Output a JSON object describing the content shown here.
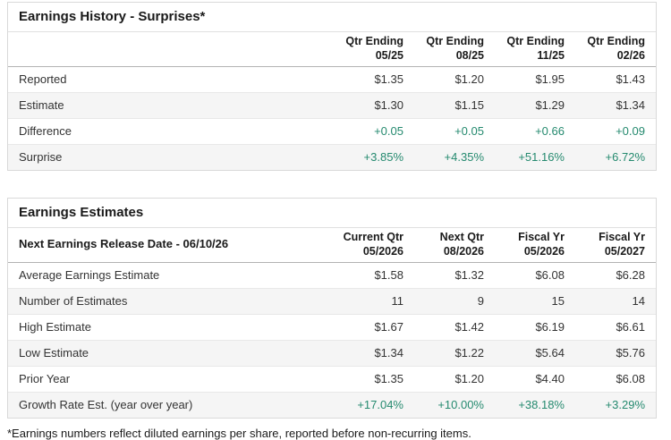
{
  "colors": {
    "positive_green": "#258a6f",
    "row_alt_bg": "#f5f5f5",
    "border_light": "#e8e8e8",
    "border_header": "#b3b3b3",
    "text_dark": "#1a1a1a"
  },
  "earnings_history": {
    "title": "Earnings History - Surprises*",
    "columns": [
      {
        "line1": "Qtr Ending",
        "line2": "05/25"
      },
      {
        "line1": "Qtr Ending",
        "line2": "08/25"
      },
      {
        "line1": "Qtr Ending",
        "line2": "11/25"
      },
      {
        "line1": "Qtr Ending",
        "line2": "02/26"
      }
    ],
    "rows": [
      {
        "label": "Reported",
        "values": [
          "$1.35",
          "$1.20",
          "$1.95",
          "$1.43"
        ],
        "positive": false
      },
      {
        "label": "Estimate",
        "values": [
          "$1.30",
          "$1.15",
          "$1.29",
          "$1.34"
        ],
        "positive": false
      },
      {
        "label": "Difference",
        "values": [
          "+0.05",
          "+0.05",
          "+0.66",
          "+0.09"
        ],
        "positive": true
      },
      {
        "label": "Surprise",
        "values": [
          "+3.85%",
          "+4.35%",
          "+51.16%",
          "+6.72%"
        ],
        "positive": true
      }
    ]
  },
  "earnings_estimates": {
    "title": "Earnings Estimates",
    "row_header": "Next Earnings Release Date - 06/10/26",
    "columns": [
      {
        "line1": "Current Qtr",
        "line2": "05/2026"
      },
      {
        "line1": "Next Qtr",
        "line2": "08/2026"
      },
      {
        "line1": "Fiscal Yr",
        "line2": "05/2026"
      },
      {
        "line1": "Fiscal Yr",
        "line2": "05/2027"
      }
    ],
    "rows": [
      {
        "label": "Average Earnings Estimate",
        "values": [
          "$1.58",
          "$1.32",
          "$6.08",
          "$6.28"
        ],
        "positive": false
      },
      {
        "label": "Number of Estimates",
        "values": [
          "11",
          "9",
          "15",
          "14"
        ],
        "positive": false
      },
      {
        "label": "High Estimate",
        "values": [
          "$1.67",
          "$1.42",
          "$6.19",
          "$6.61"
        ],
        "positive": false
      },
      {
        "label": "Low Estimate",
        "values": [
          "$1.34",
          "$1.22",
          "$5.64",
          "$5.76"
        ],
        "positive": false
      },
      {
        "label": "Prior Year",
        "values": [
          "$1.35",
          "$1.20",
          "$4.40",
          "$6.08"
        ],
        "positive": false
      },
      {
        "label": "Growth Rate Est. (year over year)",
        "values": [
          "+17.04%",
          "+10.00%",
          "+38.18%",
          "+3.29%"
        ],
        "positive": true
      }
    ]
  },
  "footnote": "*Earnings numbers reflect diluted earnings per share, reported before non-recurring items."
}
